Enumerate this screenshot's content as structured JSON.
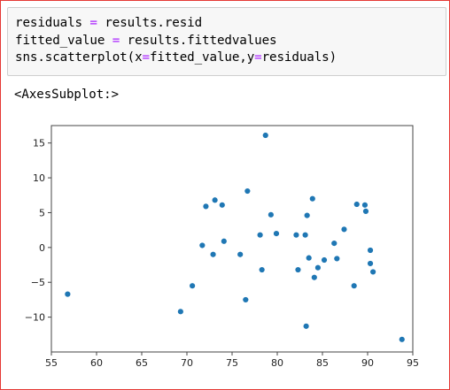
{
  "code": {
    "line1": {
      "a": "residuals ",
      "op": "=",
      "b": " results.resid"
    },
    "line2": {
      "a": "fitted_value ",
      "op": "=",
      "b": " results.fittedvalues"
    },
    "line3": {
      "a": "sns.scatterplot(x",
      "op1": "=",
      "b": "fitted_value,y",
      "op2": "=",
      "c": "residuals)"
    }
  },
  "output_text": "<AxesSubplot:>",
  "colors": {
    "point": "#1f77b4",
    "frame": "#e53935"
  },
  "chart_data": {
    "type": "scatter",
    "title": "",
    "xlabel": "",
    "ylabel": "",
    "xlim": [
      55,
      95
    ],
    "ylim": [
      -15,
      17.5
    ],
    "xticks": [
      55,
      60,
      65,
      70,
      75,
      80,
      85,
      90,
      95
    ],
    "yticks": [
      -10,
      -5,
      0,
      5,
      10,
      15
    ],
    "grid": false,
    "points": [
      {
        "x": 56.8,
        "y": -6.7
      },
      {
        "x": 69.3,
        "y": -9.2
      },
      {
        "x": 70.6,
        "y": -5.5
      },
      {
        "x": 71.7,
        "y": 0.3
      },
      {
        "x": 72.1,
        "y": 5.9
      },
      {
        "x": 72.9,
        "y": -1.0
      },
      {
        "x": 73.1,
        "y": 6.8
      },
      {
        "x": 73.9,
        "y": 6.1
      },
      {
        "x": 74.1,
        "y": 0.9
      },
      {
        "x": 75.9,
        "y": -1.0
      },
      {
        "x": 76.5,
        "y": -7.5
      },
      {
        "x": 76.7,
        "y": 8.1
      },
      {
        "x": 78.1,
        "y": 1.8
      },
      {
        "x": 78.3,
        "y": -3.2
      },
      {
        "x": 78.7,
        "y": 16.1
      },
      {
        "x": 79.3,
        "y": 4.7
      },
      {
        "x": 79.9,
        "y": 2.0
      },
      {
        "x": 82.1,
        "y": 1.8
      },
      {
        "x": 82.3,
        "y": -3.2
      },
      {
        "x": 83.1,
        "y": 1.8
      },
      {
        "x": 83.2,
        "y": -11.3
      },
      {
        "x": 83.3,
        "y": 4.6
      },
      {
        "x": 83.5,
        "y": -1.5
      },
      {
        "x": 83.9,
        "y": 7.0
      },
      {
        "x": 84.1,
        "y": -4.3
      },
      {
        "x": 84.5,
        "y": -2.9
      },
      {
        "x": 85.2,
        "y": -1.8
      },
      {
        "x": 86.3,
        "y": 0.6
      },
      {
        "x": 86.6,
        "y": -1.6
      },
      {
        "x": 87.4,
        "y": 2.6
      },
      {
        "x": 88.5,
        "y": -5.5
      },
      {
        "x": 88.8,
        "y": 6.2
      },
      {
        "x": 89.7,
        "y": 6.1
      },
      {
        "x": 89.8,
        "y": 5.2
      },
      {
        "x": 90.3,
        "y": -0.4
      },
      {
        "x": 90.3,
        "y": -2.3
      },
      {
        "x": 90.6,
        "y": -3.5
      },
      {
        "x": 93.8,
        "y": -13.2
      }
    ]
  }
}
